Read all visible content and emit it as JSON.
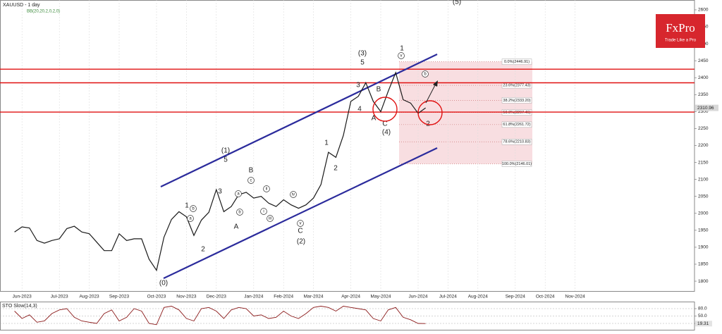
{
  "chart_data": [
    {
      "type": "line",
      "title": "XAUUSD - 1 day",
      "subtitle": "BB(20,20,2,0,2,0)",
      "categories": [
        null,
        "Jun-2023",
        null,
        null,
        null,
        null,
        "Jul-2023",
        null,
        null,
        null,
        "Aug-2023",
        null,
        null,
        null,
        "Sep-2023",
        null,
        null,
        null,
        null,
        "Oct-2023",
        null,
        null,
        null,
        "Nov-2023",
        null,
        null,
        null,
        "Dec-2023",
        null,
        null,
        null,
        null,
        "Jan-2024",
        null,
        null,
        null,
        "Feb-2024",
        null,
        null,
        null,
        "Mar-2024",
        null,
        null,
        null,
        null,
        "Apr-2024",
        null,
        null,
        null,
        "May-2024",
        null,
        null,
        null,
        null,
        "Jun-2024",
        null,
        null,
        null,
        "Jul-2024",
        null,
        null,
        null,
        "Aug-2024",
        null,
        null,
        null,
        null,
        "Sep-2024",
        null,
        null,
        null,
        "Oct-2024",
        null,
        null,
        null,
        "Nov-2024",
        null,
        null,
        null,
        null
      ],
      "values": [
        1945,
        1960,
        1957,
        1920,
        1912,
        1920,
        1925,
        1955,
        1962,
        1945,
        1940,
        1915,
        1890,
        1890,
        1940,
        1920,
        1925,
        1925,
        1865,
        1832,
        1930,
        1982,
        2005,
        1990,
        1935,
        1980,
        2003,
        2070,
        2005,
        2020,
        2055,
        2062,
        2045,
        2050,
        2030,
        2020,
        2040,
        2025,
        2015,
        2025,
        2045,
        2085,
        2180,
        2165,
        2230,
        2330,
        2345,
        2385,
        2330,
        2300,
        2360,
        2415,
        2335,
        2325,
        2295,
        2310.96,
        null,
        null,
        null,
        null,
        null,
        null,
        null,
        null,
        null,
        null,
        null,
        null,
        null,
        null,
        null,
        null,
        null,
        null,
        null,
        null,
        null,
        null,
        null,
        null
      ],
      "color": "#1a1a1a",
      "ylim": [
        1771,
        2629
      ],
      "yticks": [
        1800,
        1850,
        1900,
        1950,
        2000,
        2050,
        2100,
        2150,
        2200,
        2250,
        2300,
        2350,
        2400,
        2450,
        2500,
        2550,
        2600
      ],
      "grid": true,
      "fib_levels": [
        {
          "value": 2446.91,
          "label": "0.0%(2446.91)"
        },
        {
          "value": 2377.43,
          "label": "23.6%(2377.43)"
        },
        {
          "value": 2333.2,
          "label": "38.2%(2333.20)"
        },
        {
          "value": 2297.46,
          "label": "50.0%(2297.46)"
        },
        {
          "value": 2261.72,
          "label": "61.8%(2261.72)"
        },
        {
          "value": 2210.83,
          "label": "78.6%(2210.83)"
        },
        {
          "value": 2146.01,
          "label": "100.0%(2146.01)"
        }
      ],
      "annotations": [
        "(5)",
        "(3)",
        "5",
        "1",
        "v",
        "b",
        "3",
        "B",
        "4",
        "A",
        "C",
        "(4)",
        "2",
        "1",
        "2",
        "(1)",
        "5",
        "B",
        "c",
        "3",
        "1",
        "b",
        "a",
        "2",
        "A",
        "a",
        "b",
        "ii",
        "i",
        "iii",
        "iv",
        "v",
        "C",
        "(2)",
        "(0)"
      ]
    },
    {
      "type": "line",
      "title": "STO Slow(14,3)",
      "values": [
        70,
        40,
        55,
        25,
        30,
        60,
        75,
        80,
        45,
        30,
        25,
        20,
        60,
        75,
        30,
        45,
        80,
        70,
        20,
        15,
        85,
        90,
        75,
        40,
        30,
        80,
        85,
        70,
        40,
        75,
        85,
        80,
        50,
        55,
        40,
        45,
        70,
        50,
        40,
        60,
        85,
        90,
        85,
        70,
        90,
        85,
        80,
        75,
        40,
        30,
        75,
        85,
        45,
        35,
        20,
        19.31
      ],
      "color": "#8b1a1a",
      "ylim": [
        0,
        100
      ],
      "yticks": [
        {
          "value": 80,
          "label": "80.0"
        },
        {
          "value": 50,
          "label": "50.0"
        },
        {
          "value": 20,
          "label": "20.0"
        }
      ]
    }
  ],
  "logo": {
    "name": "FxPro",
    "tagline": "Trade Like a Pro"
  }
}
